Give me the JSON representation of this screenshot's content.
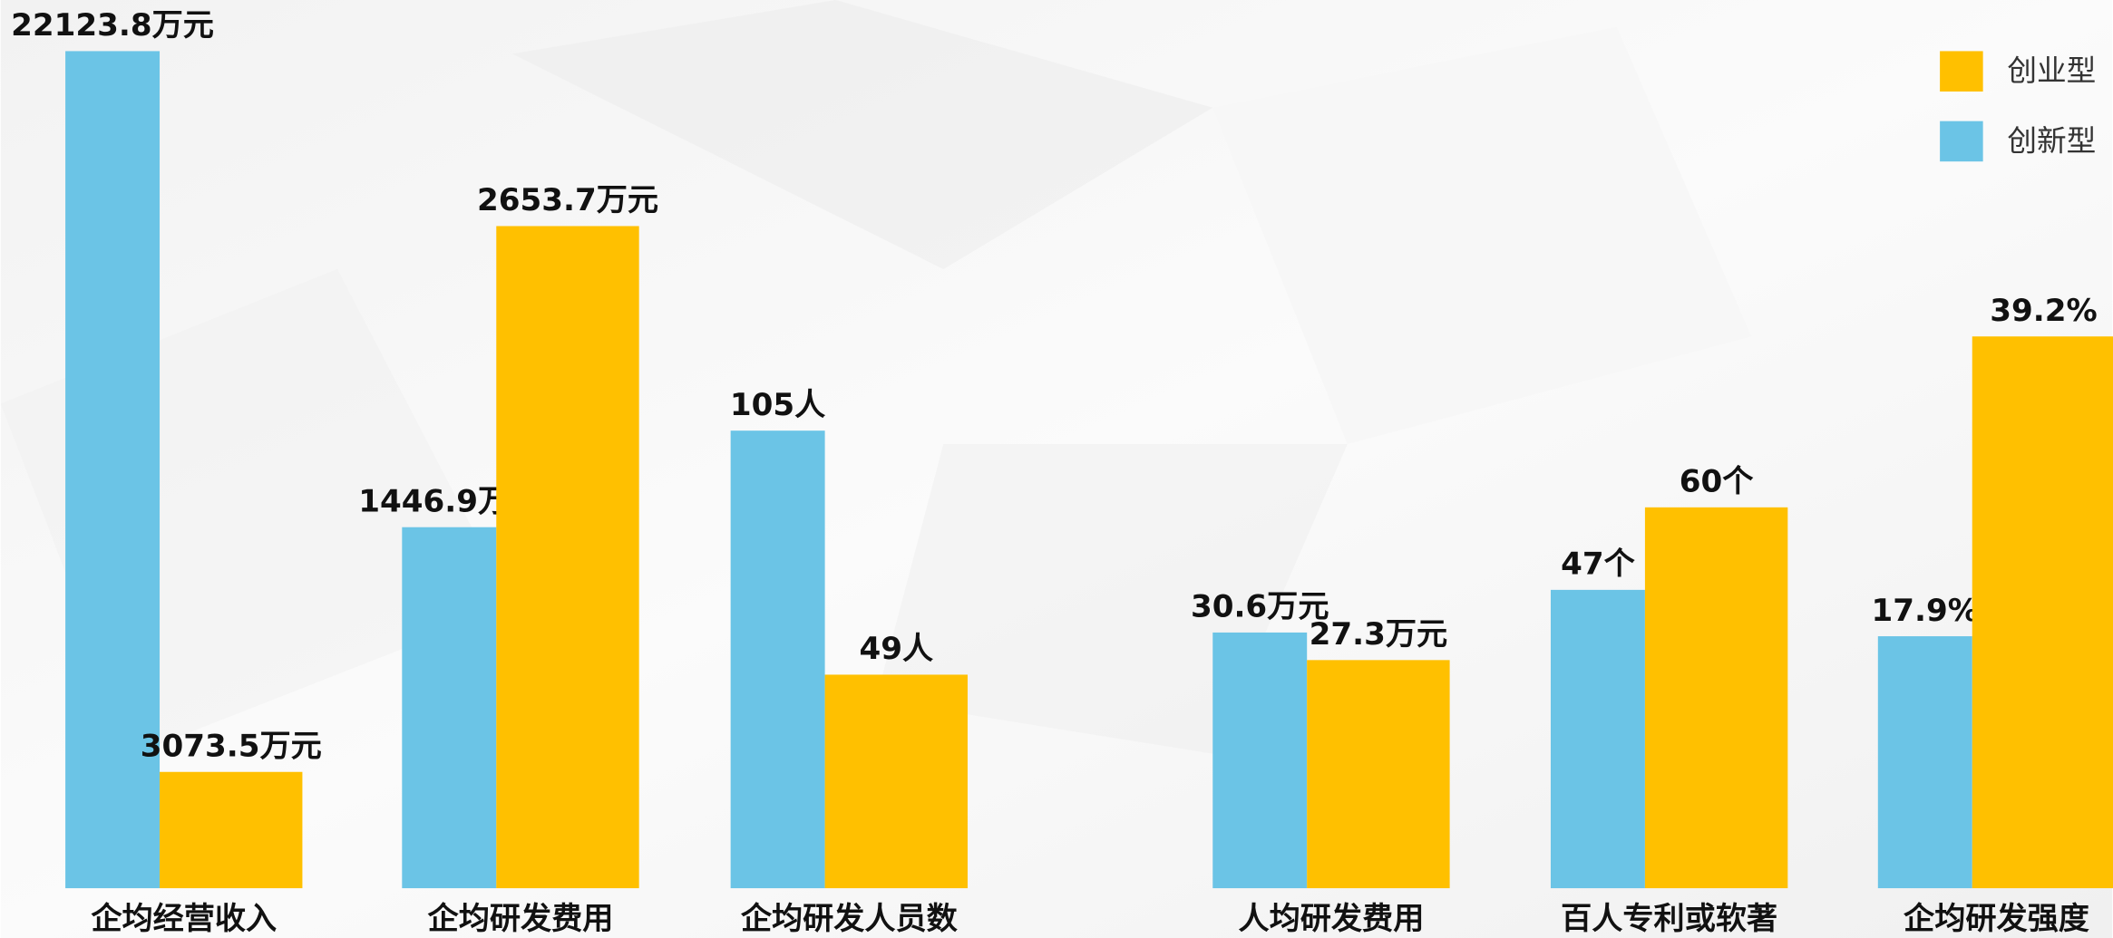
{
  "chart_data": {
    "type": "bar",
    "categories": [
      "企均经营收入",
      "企均研发费用",
      "企均研发人员数",
      "人均研发费用",
      "百人专利或软著",
      "企均研发强度"
    ],
    "series": [
      {
        "name": "创新型",
        "color": "#6bc4e6",
        "values": [
          22123.8,
          1446.9,
          105,
          30.6,
          47,
          17.9
        ],
        "value_labels": [
          "22123.8万元",
          "1446.9万元",
          "105人",
          "30.6万元",
          "47个",
          "17.9%"
        ]
      },
      {
        "name": "创业型",
        "color": "#ffc000",
        "values": [
          3073.5,
          2653.7,
          49,
          27.3,
          60,
          39.2
        ],
        "value_labels": [
          "3073.5万元",
          "2653.7万元",
          "49人",
          "27.3万元",
          "60个",
          "39.2%"
        ]
      }
    ],
    "legend": "top-right"
  }
}
